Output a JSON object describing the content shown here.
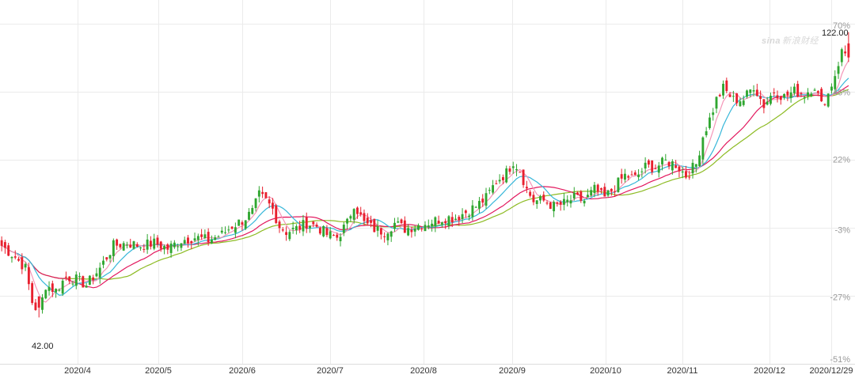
{
  "watermark": {
    "brand": "sina",
    "text": "新浪财经"
  },
  "colors": {
    "up": "#2fa630",
    "down": "#e8202e",
    "ma5": "#f596b8",
    "ma10": "#37b7d9",
    "ma20": "#e2185e",
    "ma30": "#8dbb23",
    "grid": "#ebebeb",
    "label": "#999999",
    "axisText": "#333333"
  },
  "chart_data": {
    "type": "candlestick",
    "title": "",
    "xlabel": "",
    "ylabel": "",
    "x_ticks": [
      "2020/4",
      "2020/5",
      "2020/6",
      "2020/7",
      "2020/8",
      "2020/9",
      "2020/10",
      "2020/11",
      "2020/12",
      "2020/12/29"
    ],
    "y_ticks": [
      "70%",
      "46%",
      "22%",
      "-3%",
      "-27%",
      "-51%"
    ],
    "y_tick_values": [
      70,
      46,
      22,
      -3,
      -27,
      -51
    ],
    "ylim": [
      -51,
      70
    ],
    "max_price_label": "122.00",
    "min_price_label": "42.00",
    "moving_averages": [
      "MA5",
      "MA10",
      "MA20",
      "MA30"
    ],
    "close_trend": [
      [
        0,
        -9
      ],
      [
        4,
        -13
      ],
      [
        7,
        -17
      ],
      [
        9,
        -29
      ],
      [
        11,
        -33
      ],
      [
        13,
        -23
      ],
      [
        16,
        -25
      ],
      [
        19,
        -20
      ],
      [
        22,
        -21
      ],
      [
        25,
        -23
      ],
      [
        29,
        -17
      ],
      [
        33,
        -9
      ],
      [
        37,
        -8
      ],
      [
        41,
        -9
      ],
      [
        45,
        -8
      ],
      [
        49,
        -10
      ],
      [
        53,
        -7
      ],
      [
        57,
        -6
      ],
      [
        61,
        -7
      ],
      [
        65,
        -5
      ],
      [
        68,
        -2
      ],
      [
        71,
        0
      ],
      [
        74,
        3
      ],
      [
        76,
        9
      ],
      [
        78,
        7
      ],
      [
        80,
        4
      ],
      [
        82,
        -2
      ],
      [
        84,
        -4
      ],
      [
        87,
        -3
      ],
      [
        90,
        -1
      ],
      [
        93,
        -2
      ],
      [
        96,
        -5
      ],
      [
        99,
        -6
      ],
      [
        102,
        -1
      ],
      [
        104,
        6
      ],
      [
        107,
        -1
      ],
      [
        110,
        -3
      ],
      [
        113,
        -4
      ],
      [
        116,
        -1
      ],
      [
        119,
        -3
      ],
      [
        122,
        -2
      ],
      [
        125,
        -1
      ],
      [
        128,
        0
      ],
      [
        131,
        1
      ],
      [
        134,
        1
      ],
      [
        137,
        3
      ],
      [
        140,
        5
      ],
      [
        143,
        8
      ],
      [
        146,
        14
      ],
      [
        149,
        17
      ],
      [
        151,
        21
      ],
      [
        153,
        18
      ],
      [
        155,
        11
      ],
      [
        157,
        7
      ],
      [
        160,
        7
      ],
      [
        163,
        5
      ],
      [
        166,
        6
      ],
      [
        169,
        8
      ],
      [
        172,
        7
      ],
      [
        175,
        11
      ],
      [
        178,
        8
      ],
      [
        181,
        12
      ],
      [
        184,
        16
      ],
      [
        187,
        15
      ],
      [
        190,
        19
      ],
      [
        193,
        19
      ],
      [
        196,
        21
      ],
      [
        199,
        20
      ],
      [
        202,
        16
      ],
      [
        205,
        20
      ],
      [
        207,
        30
      ],
      [
        209,
        36
      ],
      [
        211,
        43
      ],
      [
        213,
        47
      ],
      [
        216,
        43
      ],
      [
        219,
        43
      ],
      [
        222,
        48
      ],
      [
        225,
        41
      ],
      [
        228,
        46
      ],
      [
        231,
        44
      ],
      [
        234,
        46
      ],
      [
        237,
        45
      ],
      [
        240,
        48
      ],
      [
        242,
        41
      ],
      [
        244,
        45
      ],
      [
        246,
        52
      ],
      [
        248,
        60
      ],
      [
        250,
        59
      ]
    ],
    "n_sessions": 251
  }
}
